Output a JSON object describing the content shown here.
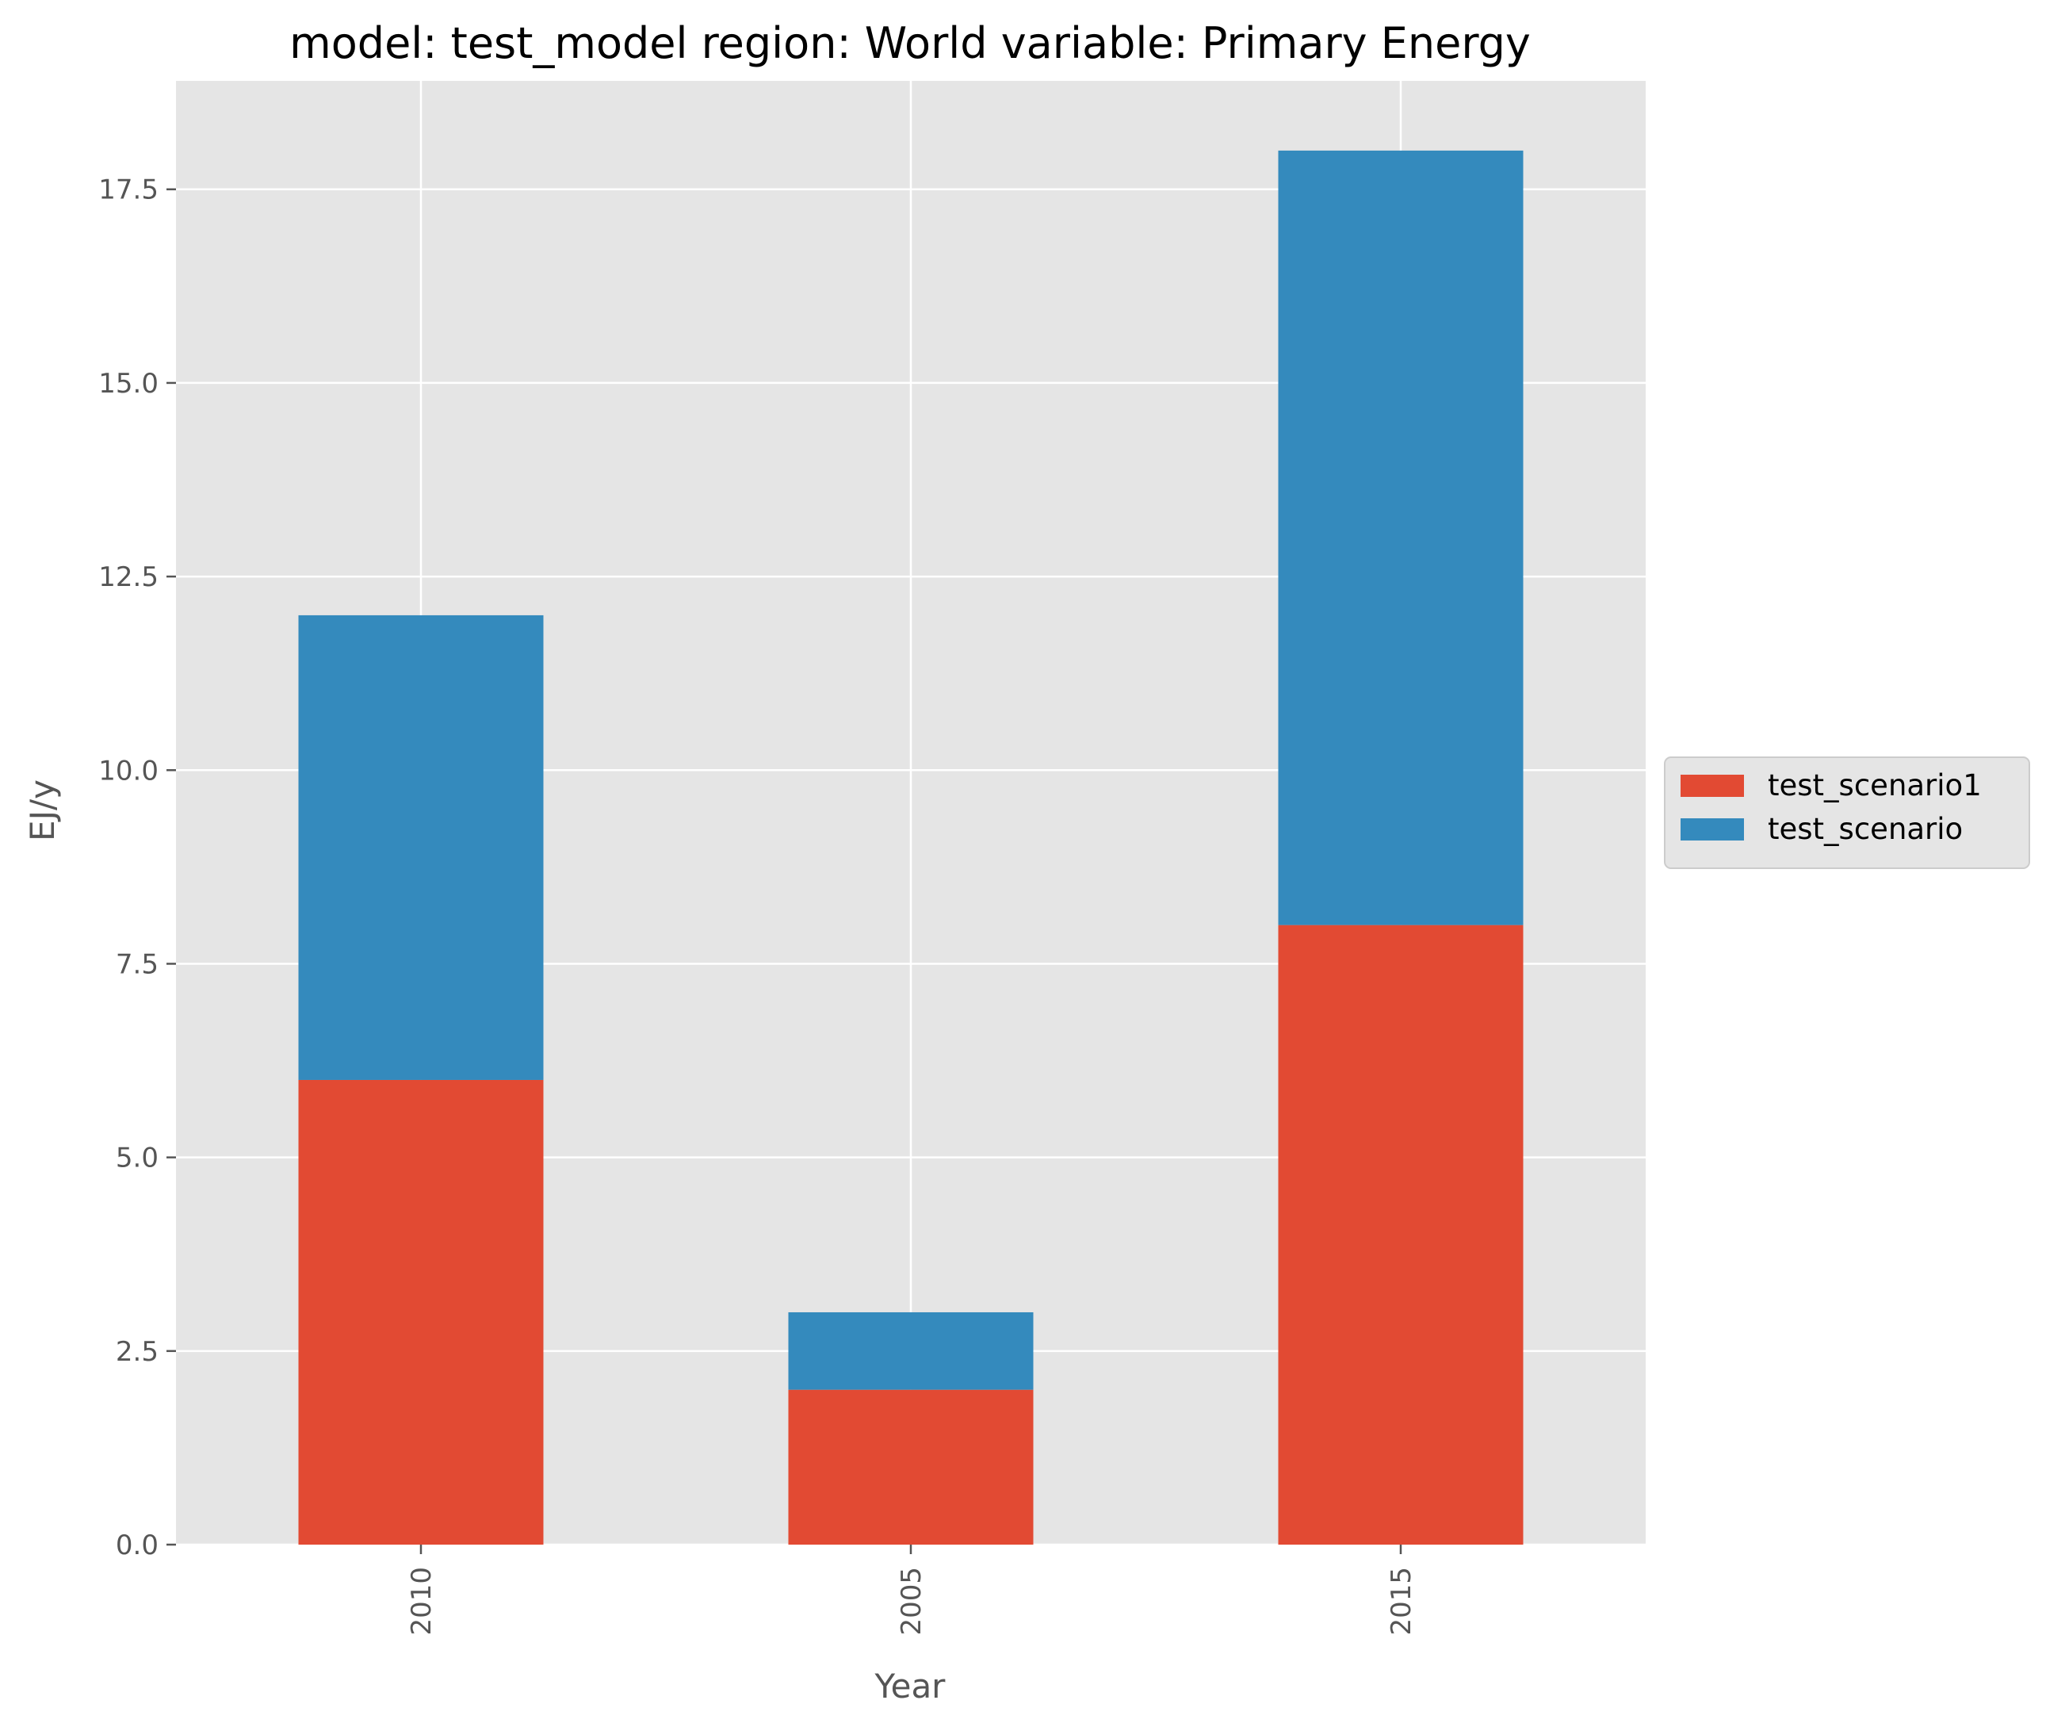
{
  "chart_data": {
    "type": "bar",
    "stacked": true,
    "title": "model: test_model region: World variable: Primary Energy",
    "xlabel": "Year",
    "ylabel": "EJ/y",
    "categories": [
      "2010",
      "2005",
      "2015"
    ],
    "series": [
      {
        "name": "test_scenario1",
        "values": [
          6,
          2,
          8
        ],
        "color": "#e24a33"
      },
      {
        "name": "test_scenario",
        "values": [
          6,
          1,
          10
        ],
        "color": "#348abd"
      }
    ],
    "ylim": [
      0,
      18.9
    ],
    "yticks": [
      "0.0",
      "2.5",
      "5.0",
      "7.5",
      "10.0",
      "12.5",
      "15.0",
      "17.5"
    ],
    "grid": true,
    "legend_position": "right, outside plot",
    "background": "#e5e5e5",
    "grid_color": "#ffffff"
  }
}
